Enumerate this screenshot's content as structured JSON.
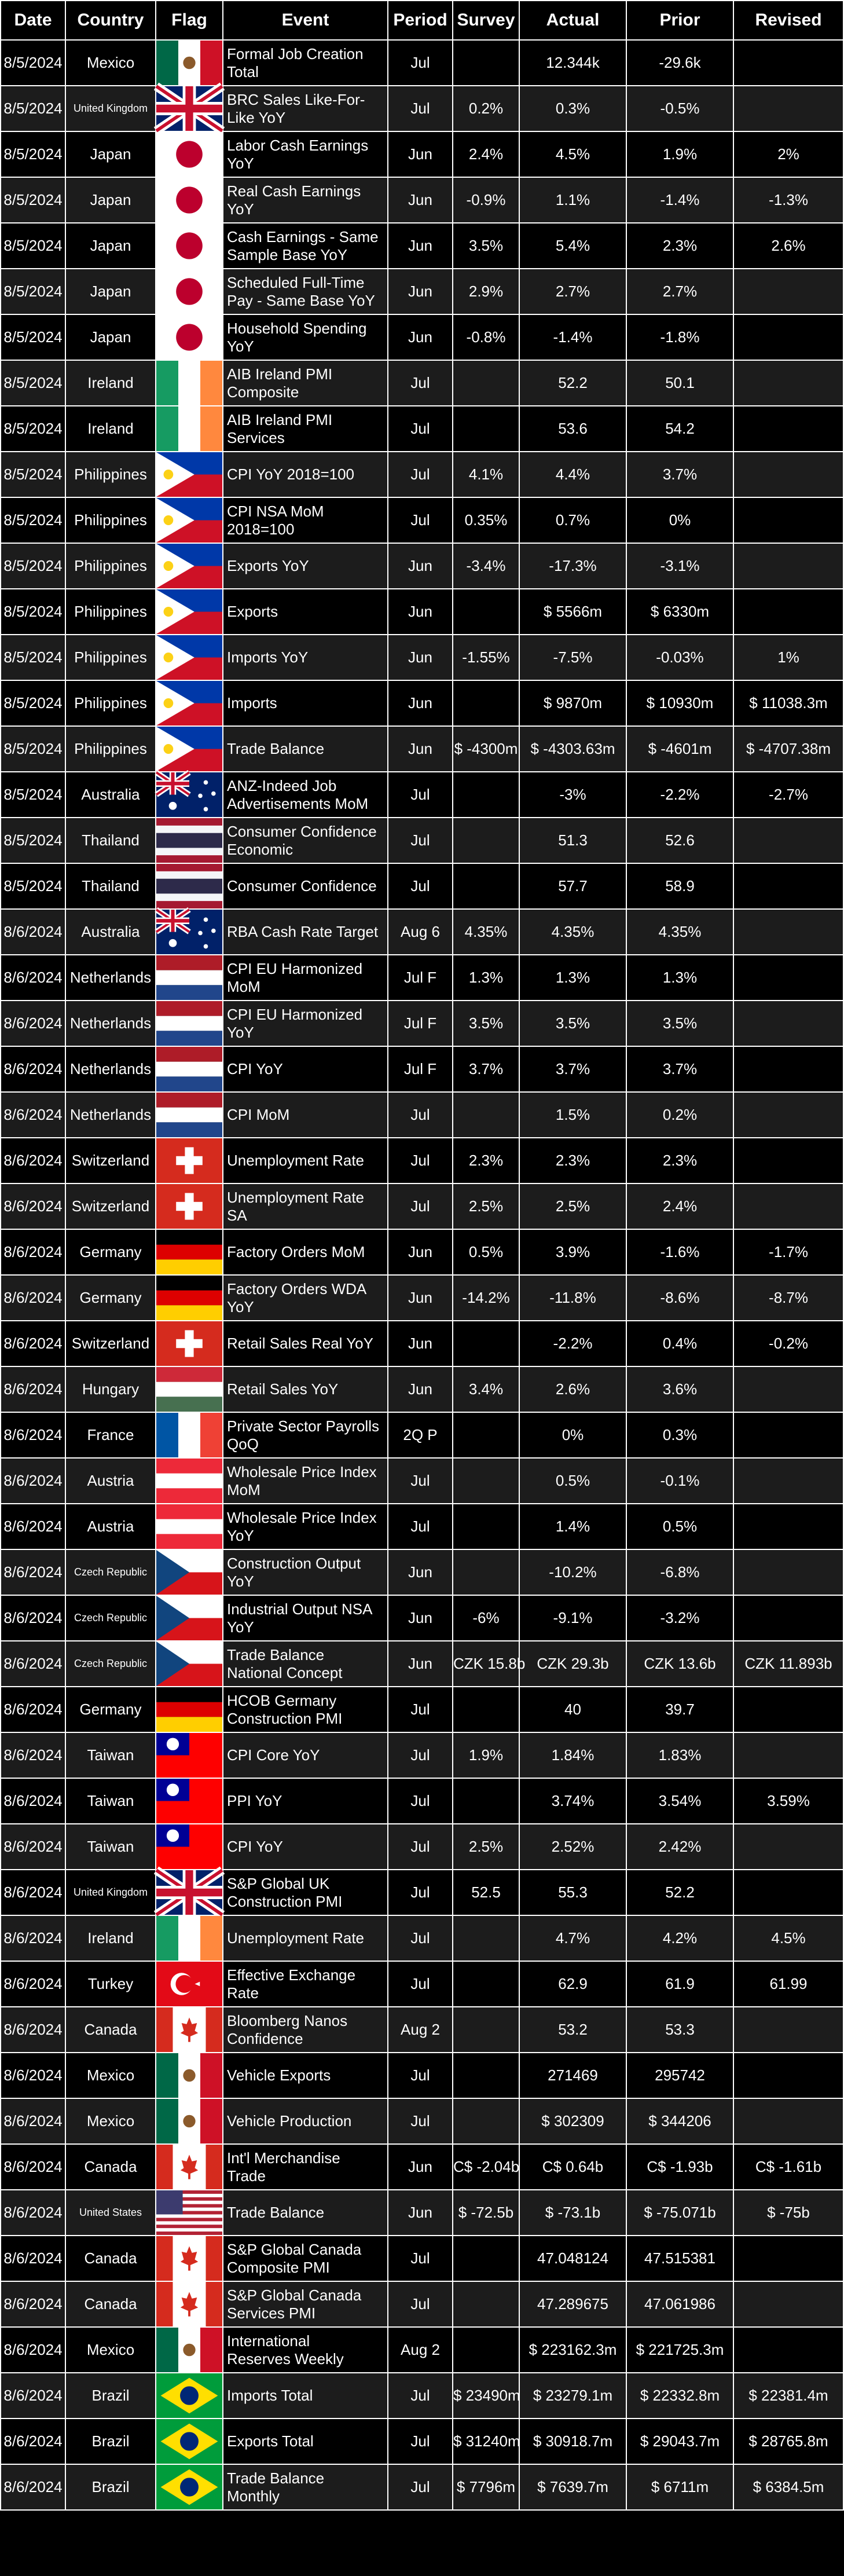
{
  "headers": [
    "Date",
    "Country",
    "Flag",
    "Event",
    "Period",
    "Survey",
    "Actual",
    "Prior",
    "Revised"
  ],
  "rows": [
    {
      "date": "8/5/2024",
      "country": "Mexico",
      "flag": "mexico-flag-icon",
      "event": "Formal Job Creation\nTotal",
      "period": "Jul",
      "survey": "",
      "actual": "12.344k",
      "prior": "-29.6k",
      "revised": ""
    },
    {
      "date": "8/5/2024",
      "country": "United Kingdom",
      "flag": "united-kingdom-flag-icon",
      "event": "BRC Sales Like-For-\nLike YoY",
      "period": "Jul",
      "survey": "0.2%",
      "actual": "0.3%",
      "prior": "-0.5%",
      "revised": ""
    },
    {
      "date": "8/5/2024",
      "country": "Japan",
      "flag": "japan-flag-icon",
      "event": "Labor Cash Earnings\nYoY",
      "period": "Jun",
      "survey": "2.4%",
      "actual": "4.5%",
      "prior": "1.9%",
      "revised": "2%"
    },
    {
      "date": "8/5/2024",
      "country": "Japan",
      "flag": "japan-flag-icon",
      "event": "Real Cash Earnings\nYoY",
      "period": "Jun",
      "survey": "-0.9%",
      "actual": "1.1%",
      "prior": "-1.4%",
      "revised": "-1.3%"
    },
    {
      "date": "8/5/2024",
      "country": "Japan",
      "flag": "japan-flag-icon",
      "event": "Cash Earnings - Same\nSample Base YoY",
      "period": "Jun",
      "survey": "3.5%",
      "actual": "5.4%",
      "prior": "2.3%",
      "revised": "2.6%"
    },
    {
      "date": "8/5/2024",
      "country": "Japan",
      "flag": "japan-flag-icon",
      "event": "Scheduled Full-Time\nPay - Same Base YoY",
      "period": "Jun",
      "survey": "2.9%",
      "actual": "2.7%",
      "prior": "2.7%",
      "revised": ""
    },
    {
      "date": "8/5/2024",
      "country": "Japan",
      "flag": "japan-flag-icon",
      "event": "Household Spending\nYoY",
      "period": "Jun",
      "survey": "-0.8%",
      "actual": "-1.4%",
      "prior": "-1.8%",
      "revised": ""
    },
    {
      "date": "8/5/2024",
      "country": "Ireland",
      "flag": "ireland-flag-icon",
      "event": "AIB Ireland PMI\nComposite",
      "period": "Jul",
      "survey": "",
      "actual": "52.2",
      "prior": "50.1",
      "revised": ""
    },
    {
      "date": "8/5/2024",
      "country": "Ireland",
      "flag": "ireland-flag-icon",
      "event": "AIB Ireland PMI\nServices",
      "period": "Jul",
      "survey": "",
      "actual": "53.6",
      "prior": "54.2",
      "revised": ""
    },
    {
      "date": "8/5/2024",
      "country": "Philippines",
      "flag": "philippines-flag-icon",
      "event": "CPI YoY 2018=100",
      "period": "Jul",
      "survey": "4.1%",
      "actual": "4.4%",
      "prior": "3.7%",
      "revised": ""
    },
    {
      "date": "8/5/2024",
      "country": "Philippines",
      "flag": "philippines-flag-icon",
      "event": "CPI NSA MoM\n2018=100",
      "period": "Jul",
      "survey": "0.35%",
      "actual": "0.7%",
      "prior": "0%",
      "revised": ""
    },
    {
      "date": "8/5/2024",
      "country": "Philippines",
      "flag": "philippines-flag-icon",
      "event": "Exports YoY",
      "period": "Jun",
      "survey": "-3.4%",
      "actual": "-17.3%",
      "prior": "-3.1%",
      "revised": ""
    },
    {
      "date": "8/5/2024",
      "country": "Philippines",
      "flag": "philippines-flag-icon",
      "event": "Exports",
      "period": "Jun",
      "survey": "",
      "actual": "$ 5566m",
      "prior": "$ 6330m",
      "revised": ""
    },
    {
      "date": "8/5/2024",
      "country": "Philippines",
      "flag": "philippines-flag-icon",
      "event": "Imports YoY",
      "period": "Jun",
      "survey": "-1.55%",
      "actual": "-7.5%",
      "prior": "-0.03%",
      "revised": "1%"
    },
    {
      "date": "8/5/2024",
      "country": "Philippines",
      "flag": "philippines-flag-icon",
      "event": "Imports",
      "period": "Jun",
      "survey": "",
      "actual": "$ 9870m",
      "prior": "$ 10930m",
      "revised": "$ 11038.3m"
    },
    {
      "date": "8/5/2024",
      "country": "Philippines",
      "flag": "philippines-flag-icon",
      "event": "Trade Balance",
      "period": "Jun",
      "survey": "$ -4300m",
      "actual": "$ -4303.63m",
      "prior": "$ -4601m",
      "revised": "$ -4707.38m"
    },
    {
      "date": "8/5/2024",
      "country": "Australia",
      "flag": "australia-flag-icon",
      "event": "ANZ-Indeed Job\nAdvertisements MoM",
      "period": "Jul",
      "survey": "",
      "actual": "-3%",
      "prior": "-2.2%",
      "revised": "-2.7%"
    },
    {
      "date": "8/5/2024",
      "country": "Thailand",
      "flag": "thailand-flag-icon",
      "event": "Consumer Confidence\nEconomic",
      "period": "Jul",
      "survey": "",
      "actual": "51.3",
      "prior": "52.6",
      "revised": ""
    },
    {
      "date": "8/5/2024",
      "country": "Thailand",
      "flag": "thailand-flag-icon",
      "event": "Consumer Confidence",
      "period": "Jul",
      "survey": "",
      "actual": "57.7",
      "prior": "58.9",
      "revised": ""
    },
    {
      "date": "8/6/2024",
      "country": "Australia",
      "flag": "australia-flag-icon",
      "event": "RBA Cash Rate Target",
      "period": "Aug 6",
      "survey": "4.35%",
      "actual": "4.35%",
      "prior": "4.35%",
      "revised": ""
    },
    {
      "date": "8/6/2024",
      "country": "Netherlands",
      "flag": "netherlands-flag-icon",
      "event": "CPI EU Harmonized\nMoM",
      "period": "Jul F",
      "survey": "1.3%",
      "actual": "1.3%",
      "prior": "1.3%",
      "revised": ""
    },
    {
      "date": "8/6/2024",
      "country": "Netherlands",
      "flag": "netherlands-flag-icon",
      "event": "CPI EU Harmonized\nYoY",
      "period": "Jul F",
      "survey": "3.5%",
      "actual": "3.5%",
      "prior": "3.5%",
      "revised": ""
    },
    {
      "date": "8/6/2024",
      "country": "Netherlands",
      "flag": "netherlands-flag-icon",
      "event": "CPI YoY",
      "period": "Jul F",
      "survey": "3.7%",
      "actual": "3.7%",
      "prior": "3.7%",
      "revised": ""
    },
    {
      "date": "8/6/2024",
      "country": "Netherlands",
      "flag": "netherlands-flag-icon",
      "event": "CPI MoM",
      "period": "Jul",
      "survey": "",
      "actual": "1.5%",
      "prior": "0.2%",
      "revised": ""
    },
    {
      "date": "8/6/2024",
      "country": "Switzerland",
      "flag": "switzerland-flag-icon",
      "event": "Unemployment Rate",
      "period": "Jul",
      "survey": "2.3%",
      "actual": "2.3%",
      "prior": "2.3%",
      "revised": ""
    },
    {
      "date": "8/6/2024",
      "country": "Switzerland",
      "flag": "switzerland-flag-icon",
      "event": "Unemployment Rate\nSA",
      "period": "Jul",
      "survey": "2.5%",
      "actual": "2.5%",
      "prior": "2.4%",
      "revised": ""
    },
    {
      "date": "8/6/2024",
      "country": "Germany",
      "flag": "germany-flag-icon",
      "event": "Factory Orders MoM",
      "period": "Jun",
      "survey": "0.5%",
      "actual": "3.9%",
      "prior": "-1.6%",
      "revised": "-1.7%"
    },
    {
      "date": "8/6/2024",
      "country": "Germany",
      "flag": "germany-flag-icon",
      "event": "Factory Orders WDA\nYoY",
      "period": "Jun",
      "survey": "-14.2%",
      "actual": "-11.8%",
      "prior": "-8.6%",
      "revised": "-8.7%"
    },
    {
      "date": "8/6/2024",
      "country": "Switzerland",
      "flag": "switzerland-flag-icon",
      "event": "Retail Sales Real YoY",
      "period": "Jun",
      "survey": "",
      "actual": "-2.2%",
      "prior": "0.4%",
      "revised": "-0.2%"
    },
    {
      "date": "8/6/2024",
      "country": "Hungary",
      "flag": "hungary-flag-icon",
      "event": "Retail Sales YoY",
      "period": "Jun",
      "survey": "3.4%",
      "actual": "2.6%",
      "prior": "3.6%",
      "revised": ""
    },
    {
      "date": "8/6/2024",
      "country": "France",
      "flag": "france-flag-icon",
      "event": "Private Sector Payrolls\nQoQ",
      "period": "2Q P",
      "survey": "",
      "actual": "0%",
      "prior": "0.3%",
      "revised": ""
    },
    {
      "date": "8/6/2024",
      "country": "Austria",
      "flag": "austria-flag-icon",
      "event": "Wholesale Price Index\nMoM",
      "period": "Jul",
      "survey": "",
      "actual": "0.5%",
      "prior": "-0.1%",
      "revised": ""
    },
    {
      "date": "8/6/2024",
      "country": "Austria",
      "flag": "austria-flag-icon",
      "event": "Wholesale Price Index\nYoY",
      "period": "Jul",
      "survey": "",
      "actual": "1.4%",
      "prior": "0.5%",
      "revised": ""
    },
    {
      "date": "8/6/2024",
      "country": "Czech Republic",
      "flag": "czech-republic-flag-icon",
      "event": "Construction Output\nYoY",
      "period": "Jun",
      "survey": "",
      "actual": "-10.2%",
      "prior": "-6.8%",
      "revised": ""
    },
    {
      "date": "8/6/2024",
      "country": "Czech Republic",
      "flag": "czech-republic-flag-icon",
      "event": "Industrial Output NSA\nYoY",
      "period": "Jun",
      "survey": "-6%",
      "actual": "-9.1%",
      "prior": "-3.2%",
      "revised": ""
    },
    {
      "date": "8/6/2024",
      "country": "Czech Republic",
      "flag": "czech-republic-flag-icon",
      "event": "Trade Balance\nNational Concept",
      "period": "Jun",
      "survey": "CZK 15.8b",
      "actual": "CZK 29.3b",
      "prior": "CZK 13.6b",
      "revised": "CZK 11.893b"
    },
    {
      "date": "8/6/2024",
      "country": "Germany",
      "flag": "germany-flag-icon",
      "event": "HCOB Germany\nConstruction PMI",
      "period": "Jul",
      "survey": "",
      "actual": "40",
      "prior": "39.7",
      "revised": ""
    },
    {
      "date": "8/6/2024",
      "country": "Taiwan",
      "flag": "taiwan-flag-icon",
      "event": "CPI Core YoY",
      "period": "Jul",
      "survey": "1.9%",
      "actual": "1.84%",
      "prior": "1.83%",
      "revised": ""
    },
    {
      "date": "8/6/2024",
      "country": "Taiwan",
      "flag": "taiwan-flag-icon",
      "event": "PPI YoY",
      "period": "Jul",
      "survey": "",
      "actual": "3.74%",
      "prior": "3.54%",
      "revised": "3.59%"
    },
    {
      "date": "8/6/2024",
      "country": "Taiwan",
      "flag": "taiwan-flag-icon",
      "event": "CPI YoY",
      "period": "Jul",
      "survey": "2.5%",
      "actual": "2.52%",
      "prior": "2.42%",
      "revised": ""
    },
    {
      "date": "8/6/2024",
      "country": "United Kingdom",
      "flag": "united-kingdom-flag-icon",
      "event": "S&P Global UK\nConstruction PMI",
      "period": "Jul",
      "survey": "52.5",
      "actual": "55.3",
      "prior": "52.2",
      "revised": ""
    },
    {
      "date": "8/6/2024",
      "country": "Ireland",
      "flag": "ireland-flag-icon",
      "event": "Unemployment Rate",
      "period": "Jul",
      "survey": "",
      "actual": "4.7%",
      "prior": "4.2%",
      "revised": "4.5%"
    },
    {
      "date": "8/6/2024",
      "country": "Turkey",
      "flag": "turkey-flag-icon",
      "event": "Effective Exchange\nRate",
      "period": "Jul",
      "survey": "",
      "actual": "62.9",
      "prior": "61.9",
      "revised": "61.99"
    },
    {
      "date": "8/6/2024",
      "country": "Canada",
      "flag": "canada-flag-icon",
      "event": "Bloomberg Nanos\nConfidence",
      "period": "Aug 2",
      "survey": "",
      "actual": "53.2",
      "prior": "53.3",
      "revised": ""
    },
    {
      "date": "8/6/2024",
      "country": "Mexico",
      "flag": "mexico-flag-icon",
      "event": "Vehicle Exports",
      "period": "Jul",
      "survey": "",
      "actual": "271469",
      "prior": "295742",
      "revised": ""
    },
    {
      "date": "8/6/2024",
      "country": "Mexico",
      "flag": "mexico-flag-icon",
      "event": "Vehicle Production",
      "period": "Jul",
      "survey": "",
      "actual": "$ 302309",
      "prior": "$ 344206",
      "revised": ""
    },
    {
      "date": "8/6/2024",
      "country": "Canada",
      "flag": "canada-flag-icon",
      "event": "Int'l Merchandise\nTrade",
      "period": "Jun",
      "survey": "C$ -2.04b",
      "actual": "C$ 0.64b",
      "prior": "C$ -1.93b",
      "revised": "C$ -1.61b"
    },
    {
      "date": "8/6/2024",
      "country": "United States",
      "flag": "united-states-flag-icon",
      "event": "Trade Balance",
      "period": "Jun",
      "survey": "$ -72.5b",
      "actual": "$ -73.1b",
      "prior": "$ -75.071b",
      "revised": "$ -75b"
    },
    {
      "date": "8/6/2024",
      "country": "Canada",
      "flag": "canada-flag-icon",
      "event": "S&P Global Canada\nComposite PMI",
      "period": "Jul",
      "survey": "",
      "actual": "47.048124",
      "prior": "47.515381",
      "revised": ""
    },
    {
      "date": "8/6/2024",
      "country": "Canada",
      "flag": "canada-flag-icon",
      "event": "S&P Global Canada\nServices PMI",
      "period": "Jul",
      "survey": "",
      "actual": "47.289675",
      "prior": "47.061986",
      "revised": ""
    },
    {
      "date": "8/6/2024",
      "country": "Mexico",
      "flag": "mexico-flag-icon",
      "event": "International\nReserves Weekly",
      "period": "Aug 2",
      "survey": "",
      "actual": "$ 223162.3m",
      "prior": "$ 221725.3m",
      "revised": ""
    },
    {
      "date": "8/6/2024",
      "country": "Brazil",
      "flag": "brazil-flag-icon",
      "event": "Imports Total",
      "period": "Jul",
      "survey": "$ 23490m",
      "actual": "$ 23279.1m",
      "prior": "$ 22332.8m",
      "revised": "$ 22381.4m"
    },
    {
      "date": "8/6/2024",
      "country": "Brazil",
      "flag": "brazil-flag-icon",
      "event": "Exports Total",
      "period": "Jul",
      "survey": "$ 31240m",
      "actual": "$ 30918.7m",
      "prior": "$ 29043.7m",
      "revised": "$ 28765.8m"
    },
    {
      "date": "8/6/2024",
      "country": "Brazil",
      "flag": "brazil-flag-icon",
      "event": "Trade Balance\nMonthly",
      "period": "Jul",
      "survey": "$ 7796m",
      "actual": "$ 7639.7m",
      "prior": "$ 6711m",
      "revised": "$ 6384.5m"
    }
  ]
}
